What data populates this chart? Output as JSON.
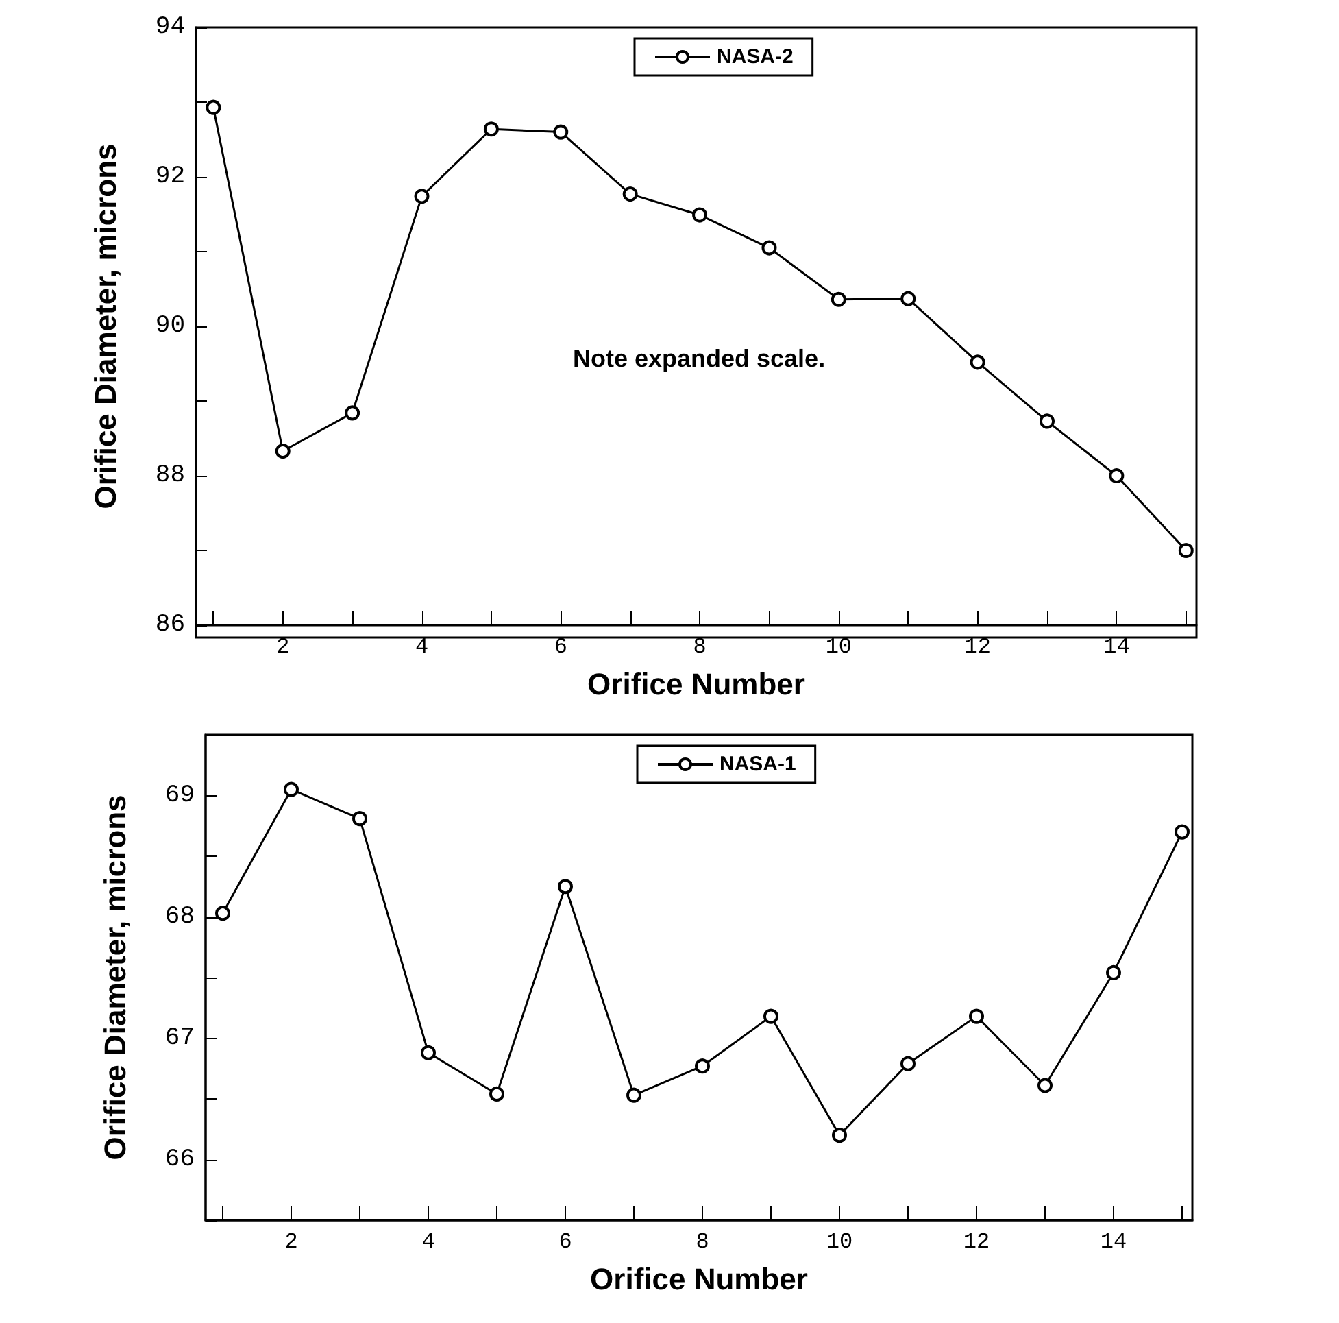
{
  "chart_data": [
    {
      "type": "line",
      "xlabel": "Orifice Number",
      "ylabel": "Orifice Diameter, microns",
      "annotations": [
        "Note expanded scale."
      ],
      "legend": "top",
      "marker": "circle",
      "line_style": "solid",
      "grid": false,
      "x": [
        1,
        2,
        3,
        4,
        5,
        6,
        7,
        8,
        9,
        10,
        11,
        12,
        13,
        14,
        15
      ],
      "series": [
        {
          "name": "NASA-2",
          "color": "#000000",
          "values": [
            92.93,
            88.33,
            88.84,
            91.74,
            92.64,
            92.6,
            91.77,
            91.49,
            91.05,
            90.36,
            90.37,
            89.52,
            88.73,
            88.0,
            87.0
          ]
        }
      ],
      "xlim": [
        0.75,
        15.15
      ],
      "xticks": [
        {
          "value": 1,
          "label": null
        },
        2,
        {
          "value": 3,
          "label": null
        },
        4,
        {
          "value": 5,
          "label": null
        },
        6,
        {
          "value": 7,
          "label": null
        },
        8,
        {
          "value": 9,
          "label": null
        },
        10,
        {
          "value": 11,
          "label": null
        },
        12,
        {
          "value": 13,
          "label": null
        },
        14,
        {
          "value": 15,
          "label": null
        }
      ],
      "ylim": [
        86,
        94
      ],
      "yticks": [
        86,
        {
          "value": 87,
          "label": null
        },
        88,
        {
          "value": 89,
          "label": null
        },
        90,
        {
          "value": 91,
          "label": null
        },
        92,
        {
          "value": 93,
          "label": null
        },
        94
      ]
    },
    {
      "type": "line",
      "xlabel": "Orifice Number",
      "ylabel": "Orifice Diameter, microns",
      "legend": "top",
      "marker": "circle",
      "line_style": "solid",
      "grid": false,
      "x": [
        1,
        2,
        3,
        4,
        5,
        6,
        7,
        8,
        9,
        10,
        11,
        12,
        13,
        14,
        15
      ],
      "series": [
        {
          "name": "NASA-1",
          "color": "#000000",
          "values": [
            68.03,
            69.05,
            68.81,
            66.88,
            66.54,
            68.25,
            66.53,
            66.77,
            67.18,
            66.2,
            66.79,
            67.18,
            66.61,
            67.54,
            68.7
          ]
        }
      ],
      "xlim": [
        0.75,
        15.15
      ],
      "xticks": [
        {
          "value": 1,
          "label": null
        },
        2,
        {
          "value": 3,
          "label": null
        },
        4,
        {
          "value": 5,
          "label": null
        },
        6,
        {
          "value": 7,
          "label": null
        },
        8,
        {
          "value": 9,
          "label": null
        },
        10,
        {
          "value": 11,
          "label": null
        },
        12,
        {
          "value": 13,
          "label": null
        },
        14,
        {
          "value": 15,
          "label": null
        }
      ],
      "ylim": [
        65.5,
        69.5
      ],
      "yticks": [
        {
          "value": 65.5,
          "label": null
        },
        66,
        {
          "value": 66.5,
          "label": null
        },
        67,
        {
          "value": 67.5,
          "label": null
        },
        68,
        {
          "value": 68.5,
          "label": null
        },
        69,
        {
          "value": 69.5,
          "label": null
        }
      ]
    }
  ]
}
